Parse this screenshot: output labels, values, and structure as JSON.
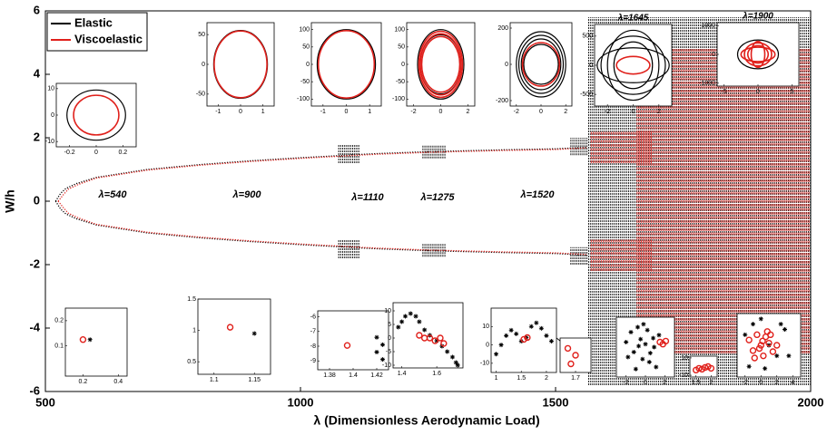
{
  "chart_data": {
    "type": "scatter",
    "xlabel": "λ (Dimensionless Aerodynamic Load)",
    "ylabel": "W/h",
    "xlim": [
      500,
      2000
    ],
    "xticks": [
      500,
      1000,
      1500,
      2000
    ],
    "ylim": [
      -6,
      6
    ],
    "yticks": [
      -6,
      -4,
      -2,
      0,
      2,
      4,
      6
    ],
    "legend": "upper left",
    "series": [
      {
        "name": "Elastic",
        "color": "#000000",
        "x": [
          520,
          530,
          540,
          560,
          600,
          700,
          800,
          900,
          1000,
          1080,
          1100,
          1150,
          1200,
          1250,
          1300,
          1400,
          1500,
          1560
        ],
        "values": [
          0,
          0.25,
          0.4,
          0.55,
          0.75,
          1.0,
          1.15,
          1.27,
          1.37,
          1.44,
          1.46,
          1.5,
          1.53,
          1.56,
          1.58,
          1.62,
          1.65,
          1.7
        ],
        "lower": [
          0,
          -0.25,
          -0.4,
          -0.55,
          -0.75,
          -1.0,
          -1.15,
          -1.27,
          -1.37,
          -1.44,
          -1.46,
          -1.5,
          -1.53,
          -1.56,
          -1.58,
          -1.62,
          -1.65,
          -1.7
        ],
        "bands": [
          {
            "x": [
              1075,
              1115
            ],
            "y": [
              1.2,
              1.8
            ]
          },
          {
            "x": [
              1075,
              1115
            ],
            "y": [
              -1.8,
              -1.2
            ]
          },
          {
            "x": [
              1240,
              1285
            ],
            "y": [
              1.35,
              1.75
            ]
          },
          {
            "x": [
              1240,
              1285
            ],
            "y": [
              -1.75,
              -1.35
            ]
          },
          {
            "x": [
              1530,
              1565
            ],
            "y": [
              1.45,
              2.0
            ]
          },
          {
            "x": [
              1530,
              1565
            ],
            "y": [
              -2.0,
              -1.45
            ]
          },
          {
            "x": [
              1565,
              2000
            ],
            "y": [
              -5.8,
              5.8
            ]
          }
        ]
      },
      {
        "name": "Viscoelastic",
        "color": "#e0201b",
        "x": [
          525,
          535,
          545,
          565,
          600,
          700,
          800,
          900,
          1000,
          1080,
          1100,
          1150,
          1200,
          1250,
          1300,
          1400,
          1500,
          1560
        ],
        "values": [
          0,
          0.2,
          0.38,
          0.53,
          0.73,
          0.98,
          1.13,
          1.25,
          1.35,
          1.42,
          1.44,
          1.48,
          1.51,
          1.54,
          1.56,
          1.6,
          1.63,
          1.68
        ],
        "lower": [
          0,
          -0.2,
          -0.38,
          -0.53,
          -0.73,
          -0.98,
          -1.13,
          -1.25,
          -1.35,
          -1.42,
          -1.44,
          -1.48,
          -1.51,
          -1.54,
          -1.56,
          -1.6,
          -1.63,
          -1.68
        ],
        "bands": [
          {
            "x": [
              1570,
              1690
            ],
            "y": [
              1.2,
              2.2
            ]
          },
          {
            "x": [
              1570,
              1690
            ],
            "y": [
              -2.2,
              -1.2
            ]
          },
          {
            "x": [
              1660,
              2000
            ],
            "y": [
              -4.8,
              4.8
            ]
          }
        ]
      }
    ],
    "annotations": [
      "λ=540",
      "λ=900",
      "λ=1110",
      "λ=1275",
      "λ=1520"
    ],
    "insets": [
      {
        "type": "orbit",
        "xlim": [
          -0.3,
          0.3
        ],
        "xticks": [
          -0.2,
          0,
          0.2
        ],
        "ylim": [
          -12,
          12
        ],
        "yticks": [
          -10,
          0,
          10
        ],
        "series": [
          {
            "color": "#000000",
            "rx": [
              0.22
            ],
            "ry": [
              9.5
            ]
          },
          {
            "color": "#e0201b",
            "rx": [
              0.17
            ],
            "ry": [
              7.5
            ]
          }
        ]
      },
      {
        "type": "orbit",
        "xlim": [
          -1.5,
          1.5
        ],
        "xticks": [
          -1,
          0,
          1
        ],
        "ylim": [
          -70,
          70
        ],
        "yticks": [
          -50,
          0,
          50
        ],
        "series": [
          {
            "color": "#000000",
            "rx": [
              1.2
            ],
            "ry": [
              57
            ]
          },
          {
            "color": "#e0201b",
            "rx": [
              1.18
            ],
            "ry": [
              56
            ]
          }
        ]
      },
      {
        "type": "orbit",
        "xlim": [
          -1.5,
          1.5
        ],
        "xticks": [
          -1,
          0,
          1
        ],
        "ylim": [
          -120,
          120
        ],
        "yticks": [
          -100,
          -50,
          0,
          50,
          100
        ],
        "series": [
          {
            "color": "#000000",
            "rx": [
              1.25
            ],
            "ry": [
              100
            ]
          },
          {
            "color": "#e0201b",
            "rx": [
              1.2
            ],
            "ry": [
              97
            ]
          }
        ]
      },
      {
        "type": "orbit",
        "xlim": [
          -2.5,
          2.5
        ],
        "xticks": [
          -2,
          0,
          2
        ],
        "ylim": [
          -120,
          120
        ],
        "yticks": [
          -100,
          -50,
          0,
          50,
          100
        ],
        "series": [
          {
            "color": "#000000",
            "rx": [
              1.7,
              1.5
            ],
            "ry": [
              100,
              85
            ]
          },
          {
            "color": "#e0201b",
            "rx": [
              1.6,
              1.5,
              1.4
            ],
            "ry": [
              95,
              88,
              80
            ]
          }
        ]
      },
      {
        "type": "orbit",
        "xlim": [
          -2.5,
          2.5
        ],
        "xticks": [
          -2,
          0,
          2
        ],
        "ylim": [
          -230,
          230
        ],
        "yticks": [
          -200,
          0,
          200
        ],
        "series": [
          {
            "color": "#000000",
            "rx": [
              2,
              1.8,
              1.6,
              1.4
            ],
            "ry": [
              180,
              160,
              140,
              110
            ]
          },
          {
            "color": "#e0201b",
            "rx": [
              1.5
            ],
            "ry": [
              120
            ]
          }
        ]
      },
      {
        "type": "orbit",
        "title": "λ=1645",
        "xlim": [
          -3,
          3
        ],
        "xticks": [
          -2,
          0,
          2
        ],
        "ylim": [
          -700,
          700
        ],
        "yticks": [
          -500,
          0,
          500
        ],
        "series": [
          {
            "color": "#000000",
            "rx": [
              2.5,
              2,
              1.5,
              2.8
            ],
            "ry": [
              500,
              600,
              400,
              300
            ]
          },
          {
            "color": "#e0201b",
            "rx": [
              1.3
            ],
            "ry": [
              150
            ]
          }
        ]
      },
      {
        "type": "orbit",
        "title": "λ=1900",
        "xlim": [
          -6,
          6
        ],
        "xticks": [
          -5,
          0,
          5
        ],
        "ylim": [
          -1100,
          1100
        ],
        "yticks": [
          -1000,
          0,
          1000
        ],
        "series": [
          {
            "color": "#000000",
            "rx": [
              3
            ],
            "ry": [
              500
            ]
          },
          {
            "color": "#e0201b",
            "rx": [
              2,
              1.5,
              2.5,
              1
            ],
            "ry": [
              400,
              300,
              250,
              450
            ]
          }
        ]
      },
      {
        "type": "scatter",
        "xlim": [
          0.1,
          0.45
        ],
        "xticks": [
          0.2,
          0.4
        ],
        "ylim": [
          -0.02,
          0.25
        ],
        "yticks": [
          0.1,
          0.2
        ],
        "series": [
          {
            "color": "#e0201b",
            "marker": "circle",
            "x": [
              0.2
            ],
            "y": [
              0.125
            ]
          },
          {
            "color": "#000000",
            "marker": "star",
            "x": [
              0.24
            ],
            "y": [
              0.125
            ]
          }
        ]
      },
      {
        "type": "scatter",
        "xlim": [
          1.08,
          1.17
        ],
        "xticks": [
          1.1,
          1.15
        ],
        "ylim": [
          0.3,
          1.5
        ],
        "yticks": [
          0.5,
          1,
          1.5
        ],
        "series": [
          {
            "color": "#e0201b",
            "marker": "circle",
            "x": [
              1.12
            ],
            "y": [
              1.05
            ]
          },
          {
            "color": "#000000",
            "marker": "star",
            "x": [
              1.15
            ],
            "y": [
              0.95
            ]
          }
        ]
      },
      {
        "type": "scatter",
        "xlim": [
          1.37,
          1.43
        ],
        "xticks": [
          1.38,
          1.4,
          1.42
        ],
        "ylim": [
          -9.6,
          -5.6
        ],
        "yticks": [
          -9,
          -8,
          -7,
          -6
        ],
        "series": [
          {
            "color": "#e0201b",
            "marker": "circle",
            "x": [
              1.395
            ],
            "y": [
              -7.95
            ]
          },
          {
            "color": "#000000",
            "marker": "star",
            "x": [
              1.42,
              1.425,
              1.42,
              1.425
            ],
            "y": [
              -7.4,
              -7.9,
              -8.4,
              -8.9
            ]
          }
        ]
      },
      {
        "type": "scatter",
        "xlim": [
          1.35,
          1.75
        ],
        "xticks": [
          1.4,
          1.6
        ],
        "ylim": [
          -11,
          13
        ],
        "yticks": [
          -10,
          -5,
          0,
          5,
          10
        ],
        "series": [
          {
            "color": "#000000",
            "marker": "star",
            "x": [
              1.38,
              1.4,
              1.42,
              1.45,
              1.48,
              1.5,
              1.53,
              1.56,
              1.6,
              1.63,
              1.66,
              1.69,
              1.71,
              1.72
            ],
            "y": [
              4,
              6,
              8,
              9,
              8,
              6,
              3,
              1,
              -1,
              -3,
              -5,
              -7,
              -9,
              -10
            ]
          },
          {
            "color": "#e0201b",
            "marker": "circle",
            "x": [
              1.5,
              1.53,
              1.56,
              1.59,
              1.62,
              1.64
            ],
            "y": [
              1,
              0,
              0,
              -1,
              0,
              -2
            ]
          }
        ]
      },
      {
        "type": "scatter",
        "xlim": [
          0.9,
          2.2
        ],
        "xticks": [
          1,
          1.5,
          2
        ],
        "ylim": [
          -15,
          20
        ],
        "yticks": [
          -10,
          0,
          10
        ],
        "series": [
          {
            "color": "#000000",
            "marker": "star",
            "x": [
              1,
              1.1,
              1.2,
              1.3,
              1.4,
              1.5,
              1.6,
              1.7,
              1.8,
              1.9,
              2.0,
              2.1
            ],
            "y": [
              -5,
              0,
              5,
              8,
              6,
              2,
              4,
              10,
              12,
              9,
              5,
              2
            ]
          },
          {
            "color": "#e0201b",
            "marker": "circle",
            "x": [
              1.55,
              1.62
            ],
            "y": [
              3,
              4
            ]
          }
        ]
      },
      {
        "type": "scatter",
        "xlim": [
          1.6,
          1.8
        ],
        "xticks": [
          1.7
        ],
        "ylim": [
          0,
          1
        ],
        "series": [
          {
            "color": "#e0201b",
            "marker": "circle",
            "x": [
              1.65,
              1.7,
              1.67
            ],
            "y": [
              0.7,
              0.5,
              0.25
            ]
          }
        ]
      },
      {
        "type": "scatter",
        "xlim": [
          -3,
          3
        ],
        "xticks": [
          -2,
          0,
          2
        ],
        "ylim": [
          -3,
          3
        ],
        "series": [
          {
            "color": "#000000",
            "marker": "star",
            "x": [
              -2,
              -1.5,
              -1.2,
              -0.8,
              -0.5,
              -0.3,
              0,
              0.2,
              0.5,
              0.8,
              1.1,
              -1,
              -0.2,
              0.4,
              -0.7,
              1.4,
              -1.8,
              0.9
            ],
            "y": [
              0.5,
              1.5,
              -0.5,
              2,
              0.8,
              -1.2,
              0.3,
              1.7,
              -0.6,
              0.9,
              -2,
              -2.2,
              2.3,
              -1.5,
              0.1,
              1.2,
              -1,
              0
            ]
          },
          {
            "color": "#e0201b",
            "marker": "circle",
            "x": [
              1.5,
              1.8,
              2.1
            ],
            "y": [
              0.5,
              0.3,
              0.6
            ]
          }
        ]
      },
      {
        "type": "scatter",
        "xlim": [
          1.3,
          2.2
        ],
        "xticks": [
          1.5,
          2
        ],
        "ylim": [
          -12,
          12
        ],
        "yticks": [
          -10,
          10
        ],
        "series": [
          {
            "color": "#e0201b",
            "marker": "circle",
            "x": [
              1.5,
              1.6,
              1.7,
              1.8,
              1.9,
              2.0
            ],
            "y": [
              -4,
              -2,
              -3,
              -1,
              0,
              -2
            ]
          }
        ]
      },
      {
        "type": "scatter",
        "xlim": [
          -3,
          5
        ],
        "xticks": [
          -2,
          0,
          2,
          4
        ],
        "ylim": [
          -3,
          3
        ],
        "series": [
          {
            "color": "#000000",
            "marker": "star",
            "x": [
              -2,
              -1,
              0,
              1,
              2,
              3,
              -1.5,
              0.5,
              2.5,
              3.5
            ],
            "y": [
              1,
              2,
              2.5,
              0,
              -1,
              1.5,
              -2,
              -2.2,
              2,
              -1
            ]
          },
          {
            "color": "#e0201b",
            "marker": "circle",
            "x": [
              -1.5,
              -1,
              -0.5,
              0,
              0.3,
              0.6,
              1,
              1.5,
              -0.8,
              0.8,
              0.2,
              -0.2,
              1.2,
              2
            ],
            "y": [
              0.5,
              -0.5,
              1,
              0,
              -1,
              0.8,
              0.2,
              -0.6,
              -1.2,
              1.3,
              0.4,
              -0.3,
              1,
              0
            ]
          }
        ]
      }
    ]
  }
}
